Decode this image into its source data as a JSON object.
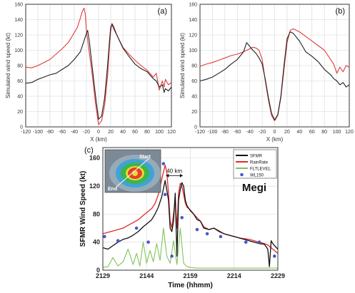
{
  "chart_data": [
    {
      "panel_label": "(a)",
      "type": "line",
      "xlabel": "X (km)",
      "ylabel": "Simulated wind speed (kt)",
      "xlim": [
        -120,
        120
      ],
      "ylim": [
        0,
        160
      ],
      "xticks": [
        "-120",
        "-100",
        "-80",
        "-60",
        "-40",
        "-20",
        "0",
        "20",
        "40",
        "60",
        "80",
        "100",
        "120"
      ],
      "yticks": [
        "0",
        "20",
        "40",
        "60",
        "80",
        "100",
        "120",
        "140",
        "160"
      ],
      "grid": true,
      "series": [
        {
          "color": "#e23b3b",
          "x": [
            -120,
            -110,
            -100,
            -90,
            -80,
            -70,
            -60,
            -50,
            -40,
            -35,
            -30,
            -27,
            -24,
            -22,
            -20,
            -15,
            -10,
            -5,
            0,
            5,
            10,
            15,
            18,
            20,
            22,
            25,
            30,
            40,
            50,
            60,
            70,
            80,
            90,
            95,
            100,
            105,
            108,
            110,
            115,
            120
          ],
          "y": [
            78,
            77,
            80,
            84,
            88,
            95,
            102,
            110,
            123,
            130,
            142,
            150,
            155,
            148,
            125,
            95,
            65,
            30,
            3,
            8,
            28,
            68,
            105,
            125,
            135,
            131,
            120,
            104,
            95,
            87,
            80,
            74,
            65,
            70,
            48,
            60,
            52,
            62,
            55,
            58
          ]
        },
        {
          "color": "#222222",
          "x": [
            -120,
            -110,
            -100,
            -90,
            -80,
            -70,
            -60,
            -50,
            -40,
            -30,
            -25,
            -20,
            -18,
            -15,
            -10,
            -5,
            0,
            5,
            10,
            15,
            18,
            20,
            22,
            25,
            30,
            40,
            50,
            60,
            70,
            80,
            90,
            95,
            100,
            105,
            108,
            110,
            115,
            120
          ],
          "y": [
            57,
            58,
            62,
            65,
            68,
            70,
            75,
            80,
            88,
            98,
            110,
            122,
            126,
            110,
            75,
            40,
            10,
            14,
            38,
            82,
            112,
            130,
            134,
            128,
            120,
            103,
            92,
            82,
            76,
            72,
            63,
            60,
            52,
            55,
            45,
            50,
            47,
            52
          ]
        }
      ]
    },
    {
      "panel_label": "(b)",
      "type": "line",
      "xlabel": "X (km)",
      "ylabel": "Simulated wind speed (kt)",
      "xlim": [
        -120,
        120
      ],
      "ylim": [
        0,
        160
      ],
      "xticks": [
        "-120",
        "-100",
        "-80",
        "-60",
        "-40",
        "-20",
        "0",
        "20",
        "40",
        "60",
        "80",
        "100",
        "120"
      ],
      "yticks": [
        "0",
        "20",
        "40",
        "60",
        "80",
        "100",
        "120",
        "140",
        "160"
      ],
      "grid": true,
      "series": [
        {
          "color": "#e23b3b",
          "x": [
            -120,
            -110,
            -100,
            -90,
            -80,
            -70,
            -60,
            -50,
            -40,
            -35,
            -30,
            -25,
            -20,
            -15,
            -10,
            -5,
            0,
            5,
            10,
            15,
            20,
            25,
            30,
            40,
            50,
            60,
            70,
            80,
            90,
            95,
            100,
            105,
            110,
            115,
            120
          ],
          "y": [
            79,
            82,
            84,
            87,
            90,
            93,
            95,
            98,
            102,
            104,
            103,
            100,
            88,
            60,
            35,
            15,
            8,
            15,
            38,
            75,
            110,
            126,
            128,
            124,
            118,
            112,
            106,
            100,
            88,
            82,
            70,
            78,
            72,
            80,
            78
          ]
        },
        {
          "color": "#222222",
          "x": [
            -120,
            -110,
            -100,
            -90,
            -80,
            -70,
            -60,
            -50,
            -45,
            -40,
            -35,
            -30,
            -25,
            -20,
            -15,
            -10,
            -5,
            0,
            5,
            10,
            15,
            20,
            25,
            30,
            40,
            50,
            60,
            70,
            80,
            90,
            95,
            100,
            105,
            110,
            115,
            120
          ],
          "y": [
            60,
            62,
            65,
            70,
            75,
            82,
            88,
            98,
            110,
            105,
            100,
            96,
            90,
            82,
            62,
            38,
            18,
            9,
            16,
            40,
            80,
            115,
            124,
            122,
            112,
            98,
            92,
            85,
            75,
            68,
            63,
            60,
            55,
            58,
            52,
            55
          ]
        }
      ]
    },
    {
      "panel_label": "(c)",
      "type": "line",
      "title": "Megi",
      "xlabel": "Time (hhmm)",
      "ylabel": "SFMR Wind Speed (kt)",
      "xticks": [
        "2129",
        "2144",
        "2159",
        "2214",
        "2229"
      ],
      "yticks": [
        "0",
        "40",
        "80",
        "120",
        "160"
      ],
      "ylim": [
        0,
        175
      ],
      "grid": true,
      "legend_position": "top-right",
      "legend": [
        "SFMR",
        "RainRate",
        "FLTLEVEL",
        "WL150"
      ],
      "annotation": "40 km",
      "inset_labels": {
        "start": "Start",
        "end": "End"
      },
      "series": [
        {
          "name": "SFMR",
          "color": "#111111",
          "x": [
            0,
            3,
            6,
            9,
            12,
            15,
            18,
            21,
            24,
            27,
            29,
            31,
            33,
            35,
            37,
            39,
            40,
            41,
            42,
            43,
            44,
            45,
            46,
            47,
            48,
            49,
            50,
            52,
            54,
            56,
            58,
            60,
            63,
            66,
            69,
            72,
            75,
            78,
            81,
            84,
            87,
            90,
            93,
            96,
            98,
            99,
            100,
            101,
            102,
            104
          ],
          "y": [
            32,
            30,
            35,
            40,
            44,
            46,
            50,
            55,
            62,
            68,
            72,
            80,
            90,
            105,
            128,
            100,
            60,
            55,
            70,
            110,
            20,
            100,
            115,
            125,
            120,
            100,
            92,
            85,
            80,
            72,
            70,
            60,
            58,
            60,
            56,
            52,
            50,
            48,
            46,
            44,
            42,
            40,
            38,
            37,
            30,
            5,
            42,
            38,
            35,
            30
          ]
        },
        {
          "name": "RainRate",
          "color": "#e02a2a",
          "x": [
            0,
            3,
            6,
            9,
            12,
            15,
            18,
            21,
            24,
            27,
            29,
            31,
            33,
            35,
            37,
            38,
            39,
            40,
            41,
            42,
            43,
            44,
            45,
            46,
            47,
            48,
            49,
            50,
            52,
            54,
            56,
            58,
            60,
            63,
            66,
            69,
            72,
            75,
            78,
            81,
            84,
            87,
            90,
            93,
            96,
            98,
            100,
            102,
            104
          ],
          "y": [
            52,
            54,
            56,
            58,
            60,
            64,
            68,
            72,
            78,
            84,
            88,
            95,
            108,
            130,
            150,
            140,
            110,
            70,
            60,
            80,
            100,
            60,
            110,
            124,
            120,
            108,
            96,
            90,
            86,
            80,
            75,
            70,
            62,
            58,
            60,
            55,
            52,
            50,
            48,
            46,
            45,
            44,
            42,
            40,
            38,
            36,
            32,
            28,
            24
          ]
        },
        {
          "name": "FLTLEVEL",
          "color": "#7fc35a",
          "x": [
            0,
            3,
            6,
            9,
            12,
            15,
            18,
            20,
            22,
            24,
            26,
            28,
            30,
            32,
            34,
            36,
            38,
            40,
            42,
            44,
            46,
            48,
            50,
            52,
            55,
            60,
            65,
            70,
            75,
            80,
            85,
            90,
            95,
            100,
            104
          ],
          "y": [
            4,
            5,
            18,
            6,
            12,
            30,
            8,
            24,
            6,
            40,
            10,
            28,
            12,
            38,
            14,
            60,
            20,
            10,
            42,
            8,
            60,
            10,
            5,
            4,
            3,
            3,
            3,
            3,
            3,
            3,
            3,
            3,
            3,
            3,
            3
          ]
        },
        {
          "name": "WL150",
          "color": "#4a57c9",
          "x": [
            1,
            9,
            20,
            27,
            36,
            37,
            41,
            47,
            56,
            62,
            70,
            85,
            93,
            102
          ],
          "y": [
            48,
            42,
            60,
            40,
            152,
            108,
            20,
            75,
            58,
            52,
            48,
            40,
            40,
            20
          ]
        }
      ]
    }
  ]
}
